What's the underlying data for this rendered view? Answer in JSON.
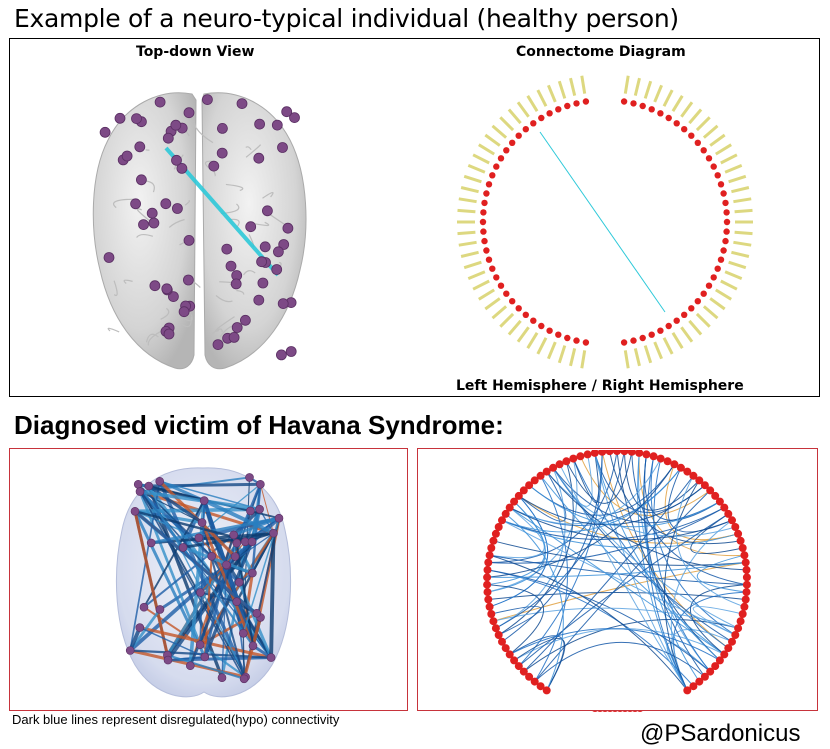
{
  "healthy": {
    "title": "Example of a neuro-typical individual (healthy person)",
    "top_down_label": "Top-down View",
    "connectome_label": "Connectome Diagram",
    "hemisphere_label": "Left Hemisphere / Right Hemisphere"
  },
  "diagnosed": {
    "title": "Diagnosed victim of Havana Syndrome:"
  },
  "caption": "Dark blue lines represent disregulated(hypo) connectivity",
  "handle": "@PSardonicus",
  "colors": {
    "node": "#7d4a86",
    "connectome_node": "#e02020",
    "label_ring": "#d8d26a",
    "healthy_link": "#2ec9d9",
    "hypo_link": "#1f5fa8",
    "panel_border": "#c7333b"
  }
}
